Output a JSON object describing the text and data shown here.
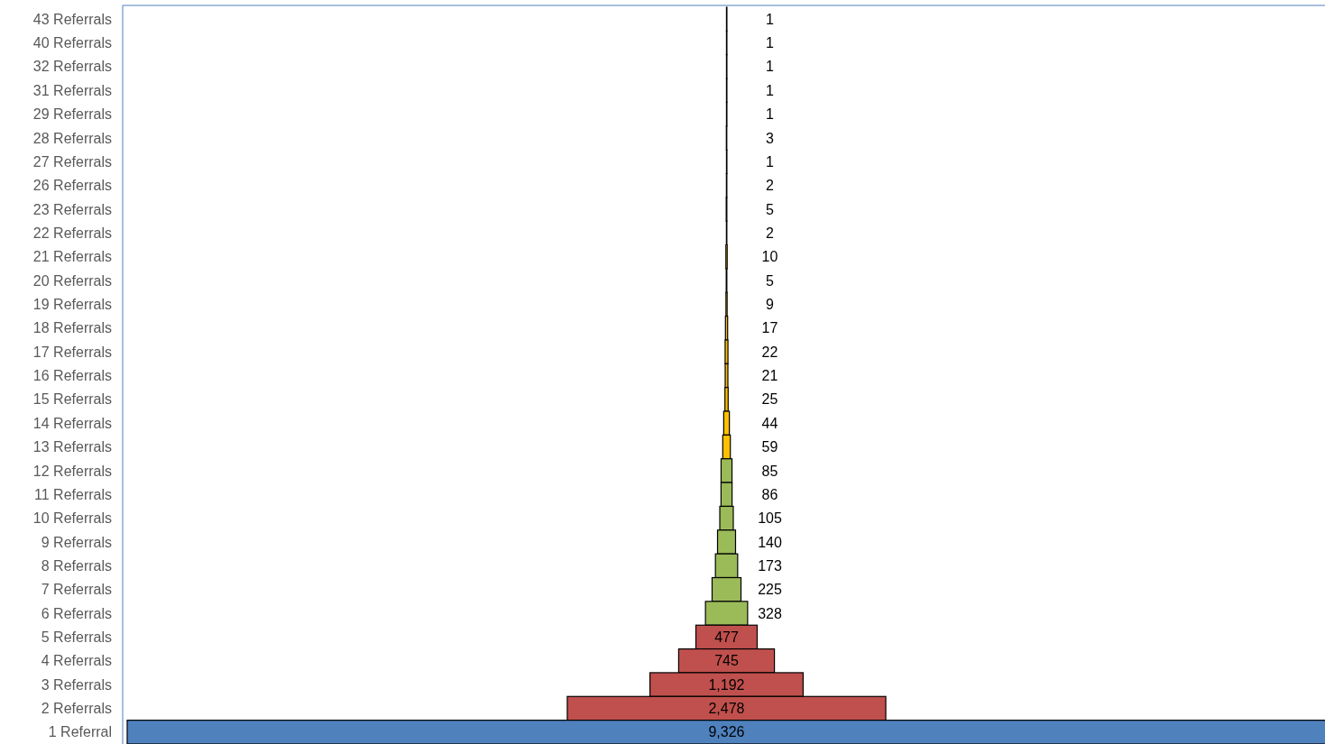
{
  "chart_data": {
    "type": "other",
    "categories": [
      "43 Referrals",
      "40 Referrals",
      "32 Referrals",
      "31 Referrals",
      "29 Referrals",
      "28 Referrals",
      "27 Referrals",
      "26 Referrals",
      "23 Referrals",
      "22 Referrals",
      "21 Referrals",
      "20 Referrals",
      "19 Referrals",
      "18 Referrals",
      "17 Referrals",
      "16 Referrals",
      "15 Referrals",
      "14 Referrals",
      "13 Referrals",
      "12 Referrals",
      "11 Referrals",
      "10 Referrals",
      "9 Referrals",
      "8 Referrals",
      "7 Referrals",
      "6 Referrals",
      "5 Referrals",
      "4 Referrals",
      "3 Referrals",
      "2 Referrals",
      "1 Referral"
    ],
    "values": [
      1,
      1,
      1,
      1,
      1,
      3,
      1,
      2,
      5,
      2,
      10,
      5,
      9,
      17,
      22,
      21,
      25,
      44,
      59,
      85,
      86,
      105,
      140,
      173,
      225,
      328,
      477,
      745,
      1192,
      2478,
      9326
    ],
    "colors": [
      "#ffc000",
      "#ffc000",
      "#ffc000",
      "#ffc000",
      "#ffc000",
      "#ffc000",
      "#ffc000",
      "#ffc000",
      "#ffc000",
      "#ffc000",
      "#ffc000",
      "#ffc000",
      "#ffc000",
      "#ffc000",
      "#ffc000",
      "#ffc000",
      "#ffc000",
      "#ffc000",
      "#ffc000",
      "#9bbb59",
      "#9bbb59",
      "#9bbb59",
      "#9bbb59",
      "#9bbb59",
      "#9bbb59",
      "#9bbb59",
      "#c0504d",
      "#c0504d",
      "#c0504d",
      "#c0504d",
      "#4f81bd"
    ],
    "value_labels": [
      "1",
      "1",
      "1",
      "1",
      "1",
      "3",
      "1",
      "2",
      "5",
      "2",
      "10",
      "5",
      "9",
      "17",
      "22",
      "21",
      "25",
      "44",
      "59",
      "85",
      "86",
      "105",
      "140",
      "173",
      "225",
      "328",
      "477",
      "745",
      "1,192",
      "2,478",
      "9,326"
    ]
  }
}
